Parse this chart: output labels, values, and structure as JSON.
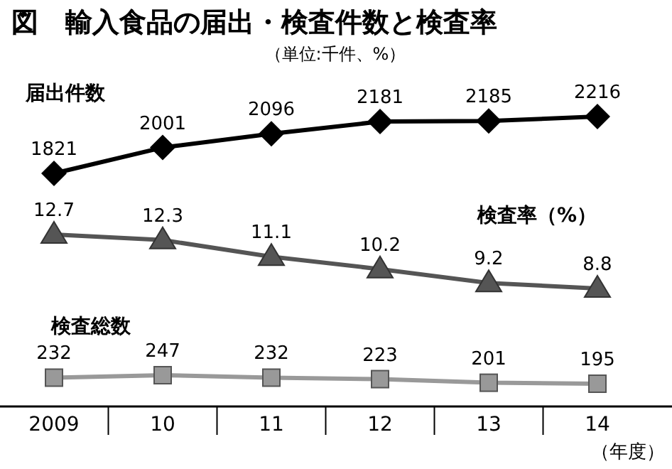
{
  "chart_data": [
    {
      "type": "line",
      "title": "図　輸入食品の届出・検査件数と検査率",
      "subtitle": "（単位:千件、%）",
      "categories": [
        "2009",
        "10",
        "11",
        "12",
        "13",
        "14"
      ],
      "marker": "diamond",
      "data_labels": true,
      "tick_labels": false,
      "series": [
        {
          "name": "届出件数",
          "color": "#000000",
          "values": [
            1821,
            2001,
            2096,
            2181,
            2185,
            2216
          ]
        }
      ]
    },
    {
      "type": "line",
      "categories": [
        "2009",
        "10",
        "11",
        "12",
        "13",
        "14"
      ],
      "marker": "triangle",
      "data_labels": true,
      "tick_labels": false,
      "series": [
        {
          "name": "検査率（%）",
          "color": "#555555",
          "values": [
            12.7,
            12.3,
            11.1,
            10.2,
            9.2,
            8.8
          ]
        }
      ]
    },
    {
      "type": "line",
      "categories": [
        "2009",
        "10",
        "11",
        "12",
        "13",
        "14"
      ],
      "marker": "square",
      "data_labels": true,
      "tick_labels": "x",
      "annotations": [
        "（年度）"
      ],
      "series": [
        {
          "name": "検査総数",
          "color": "#999999",
          "values": [
            232,
            247,
            232,
            223,
            201,
            195
          ]
        }
      ]
    }
  ]
}
